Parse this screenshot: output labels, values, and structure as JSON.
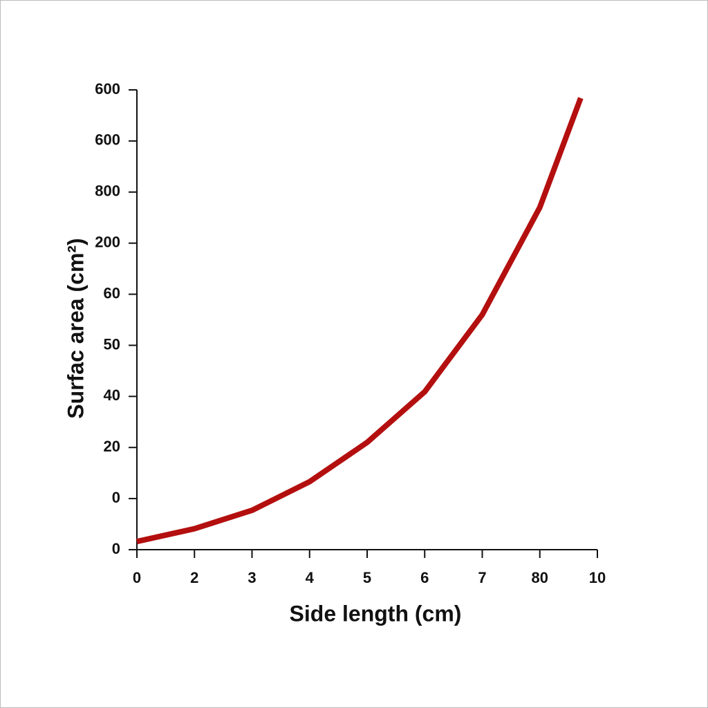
{
  "chart_data": {
    "type": "line",
    "x_label": "Side length (cm)",
    "y_label": "Surfac area (cm²)",
    "xlim": [
      0,
      8
    ],
    "xticks": [
      {
        "value": 0,
        "label": "0"
      },
      {
        "value": 1,
        "label": "2"
      },
      {
        "value": 2,
        "label": "3"
      },
      {
        "value": 3,
        "label": "4"
      },
      {
        "value": 4,
        "label": "5"
      },
      {
        "value": 5,
        "label": "6"
      },
      {
        "value": 6,
        "label": "7"
      },
      {
        "value": 7,
        "label": "80"
      },
      {
        "value": 8,
        "label": "10"
      }
    ],
    "ylim": [
      0,
      9
    ],
    "yticks": [
      {
        "value": 0,
        "label": "0"
      },
      {
        "value": 1,
        "label": "0"
      },
      {
        "value": 2,
        "label": "20"
      },
      {
        "value": 3,
        "label": "40"
      },
      {
        "value": 4,
        "label": "50"
      },
      {
        "value": 5,
        "label": "60"
      },
      {
        "value": 6,
        "label": "200"
      },
      {
        "value": 7,
        "label": "800"
      },
      {
        "value": 8,
        "label": "600"
      },
      {
        "value": 9,
        "label": "600"
      }
    ],
    "x": [
      0,
      1,
      2,
      3,
      4,
      5,
      6,
      7,
      7.71
    ],
    "series": [
      {
        "color": "#b40f0f",
        "values": [
          0.16,
          0.41,
          0.77,
          1.33,
          2.1,
          3.09,
          4.6,
          6.7,
          8.84
        ]
      }
    ]
  }
}
